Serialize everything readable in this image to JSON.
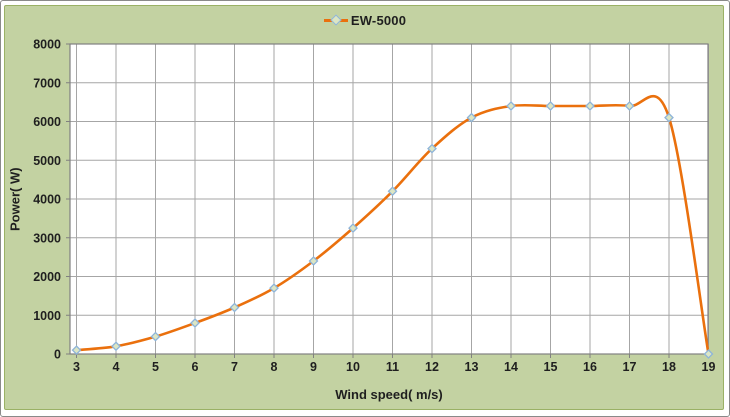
{
  "chart_data": {
    "type": "line",
    "title": "",
    "legend_entries": [
      "EW-5000"
    ],
    "legend_position": "top-center",
    "xlabel": "Wind speed( m/s)",
    "ylabel": "Power( W)",
    "x": [
      3,
      4,
      5,
      6,
      7,
      8,
      9,
      10,
      11,
      12,
      13,
      14,
      15,
      16,
      17,
      18,
      19
    ],
    "series": [
      {
        "name": "EW-5000",
        "values": [
          100,
          200,
          450,
          800,
          1200,
          1700,
          2400,
          3250,
          4200,
          5300,
          6100,
          6400,
          6400,
          6400,
          6400,
          6100,
          0
        ]
      }
    ],
    "xlim": [
      3,
      19
    ],
    "ylim": [
      0,
      8000
    ],
    "y_tick_step": 1000,
    "grid": "both",
    "smooth_line": true,
    "marker_shape": "diamond"
  },
  "legend": {
    "label": "EW-5000"
  },
  "axes": {
    "x_title": "Wind speed( m/s)",
    "y_title": "Power( W)"
  },
  "colors": {
    "chart_bg": "#c3d2a2",
    "chart_border": "#9ab165",
    "plot_bg": "#ffffff",
    "gridline": "#a6a6a6",
    "plot_border": "#808080",
    "axis_line": "#808080",
    "series_line": "#ea700d",
    "marker_fill": "#dce6c4",
    "marker_stroke": "#8eb4d9",
    "text": "#1f1f1f"
  }
}
